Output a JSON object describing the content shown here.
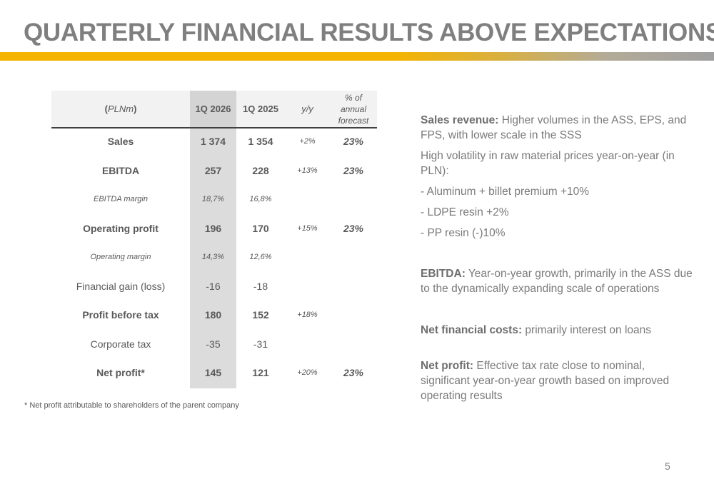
{
  "title": "QUARTERLY FINANCIAL RESULTS ABOVE EXPECTATIONS",
  "colors": {
    "accent": "#f5b400",
    "title": "#7f7f7f",
    "text": "#595959",
    "highlight_column": "#dcdcdc"
  },
  "table": {
    "headers": {
      "unit_open": "(",
      "unit": "PLNm",
      "unit_close": ")",
      "current": "1Q 2026",
      "previous": "1Q 2025",
      "yoy": "y/y",
      "forecast_line1": "% of",
      "forecast_line2": "annual",
      "forecast_line3": "forecast"
    },
    "rows": [
      {
        "label": "Sales",
        "current": "1 374",
        "previous": "1 354",
        "yoy": "+2%",
        "forecast": "23%"
      },
      {
        "label": "EBITDA",
        "current": "257",
        "previous": "228",
        "yoy": "+13%",
        "forecast": "23%"
      },
      {
        "label": "EBITDA margin",
        "current": "18,7%",
        "previous": "16,8%",
        "yoy": "",
        "forecast": ""
      },
      {
        "label": "Operating profit",
        "current": "196",
        "previous": "170",
        "yoy": "+15%",
        "forecast": "23%"
      },
      {
        "label": "Operating margin",
        "current": "14,3%",
        "previous": "12,6%",
        "yoy": "",
        "forecast": ""
      },
      {
        "label": "Financial gain (loss)",
        "current": "-16",
        "previous": "-18",
        "yoy": "",
        "forecast": ""
      },
      {
        "label": "Profit before tax",
        "current": "180",
        "previous": "152",
        "yoy": "+18%",
        "forecast": ""
      },
      {
        "label": "Corporate tax",
        "current": "-35",
        "previous": "-31",
        "yoy": "",
        "forecast": ""
      },
      {
        "label": "Net profit*",
        "current": "145",
        "previous": "121",
        "yoy": "+20%",
        "forecast": "23%"
      }
    ]
  },
  "footnote": "* Net profit attributable to shareholders of the parent company",
  "commentary": {
    "sales_label": "Sales revenue:",
    "sales_text": " Higher volumes in the ASS, EPS, and FPS, with lower scale in the SSS",
    "volatility": "High volatility in raw material prices year-on-year (in PLN):",
    "bullet1": "- Aluminum + billet premium +10%",
    "bullet2": "- LDPE resin +2%",
    "bullet3": "- PP resin (-)10%",
    "ebitda_label": "EBITDA:",
    "ebitda_text": " Year-on-year growth, primarily in the ASS due to the dynamically expanding scale of operations",
    "fin_label": "Net financial costs:",
    "fin_text": " primarily interest on loans",
    "np_label": "Net profit:",
    "np_text": " Effective tax rate close to nominal, significant year-on-year growth based on improved operating results"
  },
  "page_number": "5"
}
